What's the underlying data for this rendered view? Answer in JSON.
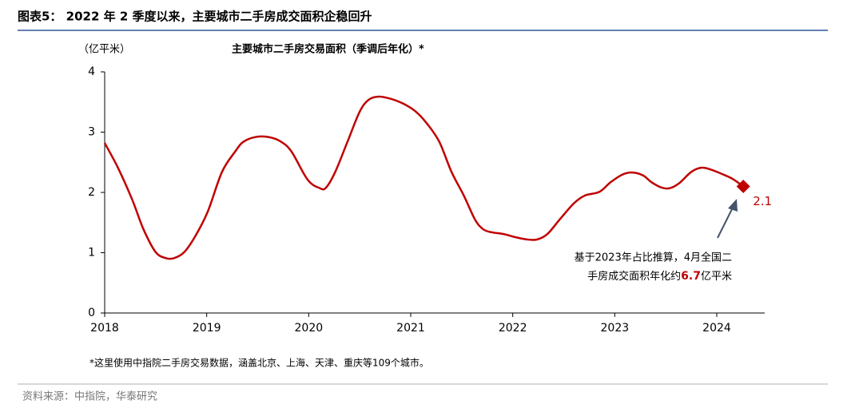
{
  "header": {
    "title": "图表5： 2022 年 2 季度以来，主要城市二手房成交面积企稳回升"
  },
  "chart_data": {
    "type": "line",
    "title": "主要城市二手房交易面积（季调后年化）*",
    "y_label": "（亿平米）",
    "x": [
      2018.0,
      2018.13,
      2018.27,
      2018.38,
      2018.5,
      2018.6,
      2018.68,
      2018.78,
      2018.89,
      2019.01,
      2019.15,
      2019.28,
      2019.36,
      2019.48,
      2019.6,
      2019.72,
      2019.83,
      2019.99,
      2020.11,
      2020.17,
      2020.26,
      2020.38,
      2020.5,
      2020.59,
      2020.69,
      2020.81,
      2020.93,
      2021.05,
      2021.16,
      2021.28,
      2021.4,
      2021.52,
      2021.63,
      2021.71,
      2021.79,
      2021.91,
      2022.02,
      2022.14,
      2022.24,
      2022.34,
      2022.46,
      2022.6,
      2022.71,
      2022.85,
      2022.96,
      2023.08,
      2023.18,
      2023.28,
      2023.36,
      2023.46,
      2023.54,
      2023.63,
      2023.75,
      2023.85,
      2023.94,
      2024.06,
      2024.16,
      2024.26
    ],
    "values": [
      2.82,
      2.41,
      1.88,
      1.39,
      1.01,
      0.91,
      0.91,
      1.01,
      1.28,
      1.68,
      2.34,
      2.68,
      2.84,
      2.92,
      2.92,
      2.85,
      2.68,
      2.21,
      2.07,
      2.08,
      2.34,
      2.84,
      3.34,
      3.54,
      3.59,
      3.55,
      3.47,
      3.34,
      3.14,
      2.84,
      2.34,
      1.95,
      1.55,
      1.39,
      1.34,
      1.31,
      1.26,
      1.22,
      1.22,
      1.31,
      1.55,
      1.82,
      1.95,
      2.01,
      2.17,
      2.3,
      2.33,
      2.28,
      2.17,
      2.08,
      2.07,
      2.15,
      2.34,
      2.41,
      2.38,
      2.3,
      2.22,
      2.1
    ],
    "color": "#c00000",
    "xlim": [
      2018,
      2024.47
    ],
    "xticks": [
      2018,
      2019,
      2020,
      2021,
      2022,
      2023,
      2024
    ],
    "ylim": [
      0,
      4
    ],
    "yticks": [
      0,
      1,
      2,
      3,
      4
    ],
    "grid": false,
    "annotation": {
      "line1": "基于2023年占比推算，4月全国二",
      "line2_pre": "手房成交面积年化约",
      "line2_highlight": "6.7",
      "line2_post": "亿平米"
    },
    "footnote": "*这里使用中指院二手房交易数据，涵盖北京、上海、天津、重庆等109个城市。"
  },
  "footer": {
    "source": "资料来源：中指院，华泰研究"
  }
}
